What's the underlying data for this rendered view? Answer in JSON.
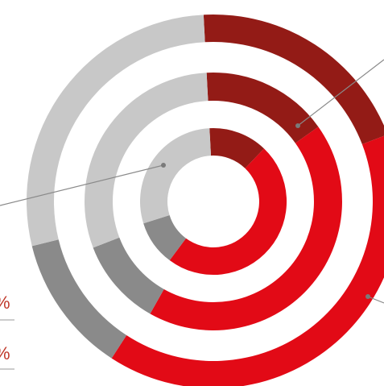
{
  "chart_data": {
    "type": "donut",
    "title": "",
    "categories": [
      "dark-red",
      "red",
      "dark-gray",
      "light-gray"
    ],
    "colors": [
      "#931b16",
      "#e20a16",
      "#8a8a8a",
      "#c8c8c8"
    ],
    "series": [
      {
        "ring": "outer",
        "values": [
          20,
          40,
          12,
          28
        ]
      },
      {
        "ring": "middle",
        "values": [
          16,
          43,
          11,
          30
        ]
      },
      {
        "ring": "inner",
        "values": [
          13,
          48,
          10,
          29
        ]
      }
    ],
    "start_angle_deg": 357
  },
  "side_glyphs": [
    "%",
    "%"
  ]
}
